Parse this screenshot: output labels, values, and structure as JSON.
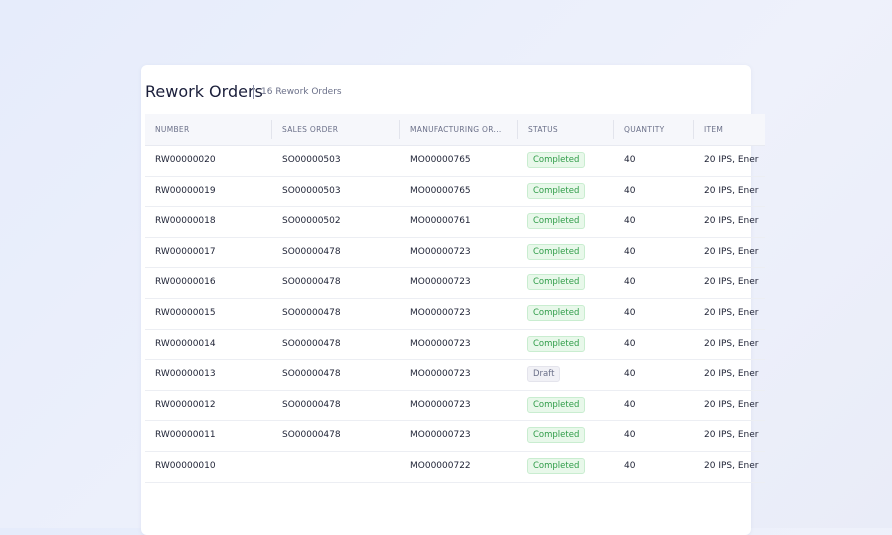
{
  "header": {
    "title": "Rework Orders",
    "count": "16 Rework Orders"
  },
  "table": {
    "columns": [
      "NUMBER",
      "SALES ORDER",
      "MANUFACTURING OR...",
      "STATUS",
      "QUANTITY",
      "ITEM"
    ],
    "rows": [
      [
        "RW00000020",
        "SO00000503",
        "MO00000765",
        "Completed",
        40,
        "20 IPS, Ener"
      ],
      [
        "RW00000019",
        "SO00000503",
        "MO00000765",
        "Completed",
        40,
        "20 IPS, Ener"
      ],
      [
        "RW00000018",
        "SO00000502",
        "MO00000761",
        "Completed",
        40,
        "20 IPS, Ener"
      ],
      [
        "RW00000017",
        "SO00000478",
        "MO00000723",
        "Completed",
        40,
        "20 IPS, Ener"
      ],
      [
        "RW00000016",
        "SO00000478",
        "MO00000723",
        "Completed",
        40,
        "20 IPS, Ener"
      ],
      [
        "RW00000015",
        "SO00000478",
        "MO00000723",
        "Completed",
        40,
        "20 IPS, Ener"
      ],
      [
        "RW00000014",
        "SO00000478",
        "MO00000723",
        "Completed",
        40,
        "20 IPS, Ener"
      ],
      [
        "RW00000013",
        "SO00000478",
        "MO00000723",
        "Draft",
        40,
        "20 IPS, Ener"
      ],
      [
        "RW00000012",
        "SO00000478",
        "MO00000723",
        "Completed",
        40,
        "20 IPS, Ener"
      ],
      [
        "RW00000011",
        "SO00000478",
        "MO00000723",
        "Completed",
        40,
        "20 IPS, Ener"
      ],
      [
        "RW00000010",
        null,
        "MO00000722",
        "Completed",
        40,
        "20 IPS, Ener"
      ]
    ]
  }
}
